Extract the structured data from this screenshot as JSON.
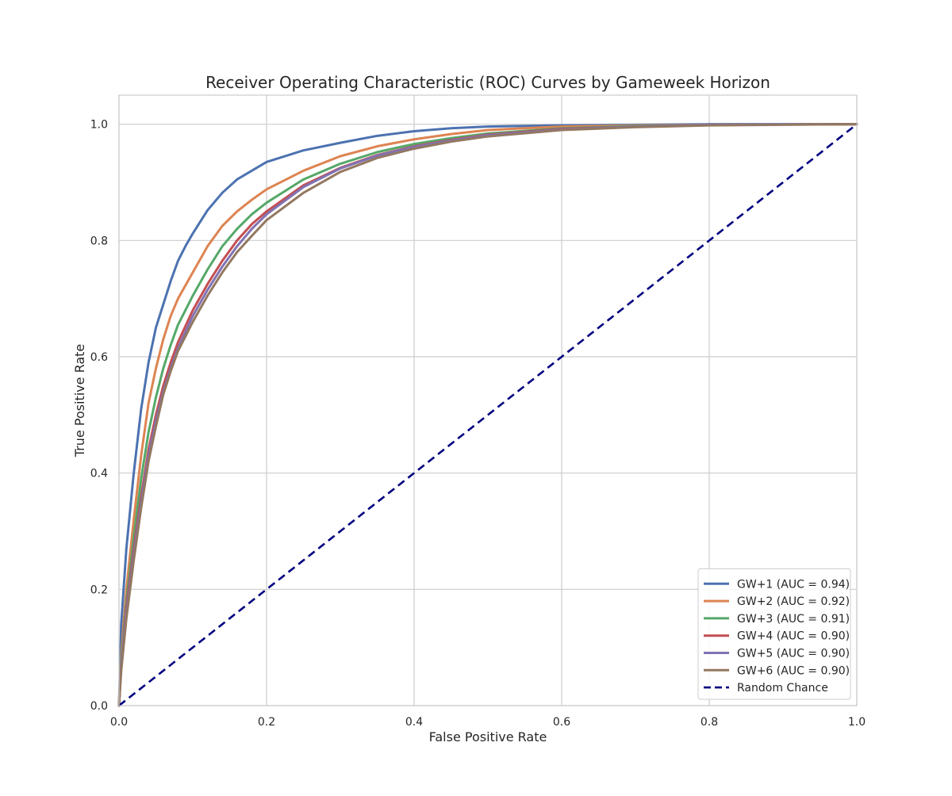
{
  "chart_data": {
    "type": "line",
    "title": "Receiver Operating Characteristic (ROC) Curves by Gameweek Horizon",
    "xlabel": "False Positive Rate",
    "ylabel": "True Positive Rate",
    "xlim": [
      0.0,
      1.0
    ],
    "ylim": [
      0.0,
      1.05
    ],
    "x_ticks": [
      "0.0",
      "0.2",
      "0.4",
      "0.6",
      "0.8",
      "1.0"
    ],
    "y_ticks": [
      "0.0",
      "0.2",
      "0.4",
      "0.6",
      "0.8",
      "1.0"
    ],
    "grid": true,
    "legend_position": "lower-right",
    "series": [
      {
        "name": "GW+1 (AUC = 0.94)",
        "color": "#4c72b0",
        "points": [
          [
            0,
            0
          ],
          [
            0.003,
            0.14
          ],
          [
            0.01,
            0.27
          ],
          [
            0.02,
            0.4
          ],
          [
            0.03,
            0.51
          ],
          [
            0.04,
            0.59
          ],
          [
            0.05,
            0.65
          ],
          [
            0.06,
            0.69
          ],
          [
            0.07,
            0.73
          ],
          [
            0.08,
            0.765
          ],
          [
            0.09,
            0.79
          ],
          [
            0.1,
            0.812
          ],
          [
            0.12,
            0.852
          ],
          [
            0.14,
            0.882
          ],
          [
            0.16,
            0.905
          ],
          [
            0.18,
            0.92
          ],
          [
            0.2,
            0.935
          ],
          [
            0.25,
            0.955
          ],
          [
            0.3,
            0.968
          ],
          [
            0.35,
            0.98
          ],
          [
            0.4,
            0.988
          ],
          [
            0.45,
            0.993
          ],
          [
            0.5,
            0.996
          ],
          [
            0.6,
            0.998
          ],
          [
            0.7,
            0.999
          ],
          [
            0.8,
            1.0
          ],
          [
            1.0,
            1.0
          ]
        ]
      },
      {
        "name": "GW+2 (AUC = 0.92)",
        "color": "#dd8452",
        "points": [
          [
            0,
            0
          ],
          [
            0.003,
            0.09
          ],
          [
            0.01,
            0.2
          ],
          [
            0.02,
            0.32
          ],
          [
            0.03,
            0.43
          ],
          [
            0.04,
            0.52
          ],
          [
            0.05,
            0.58
          ],
          [
            0.06,
            0.63
          ],
          [
            0.07,
            0.67
          ],
          [
            0.08,
            0.7
          ],
          [
            0.1,
            0.745
          ],
          [
            0.12,
            0.79
          ],
          [
            0.14,
            0.825
          ],
          [
            0.16,
            0.85
          ],
          [
            0.18,
            0.87
          ],
          [
            0.2,
            0.888
          ],
          [
            0.25,
            0.92
          ],
          [
            0.3,
            0.945
          ],
          [
            0.35,
            0.962
          ],
          [
            0.4,
            0.974
          ],
          [
            0.45,
            0.983
          ],
          [
            0.5,
            0.99
          ],
          [
            0.6,
            0.996
          ],
          [
            0.7,
            0.998
          ],
          [
            0.8,
            0.999
          ],
          [
            1.0,
            1.0
          ]
        ]
      },
      {
        "name": "GW+3 (AUC = 0.91)",
        "color": "#55a868",
        "points": [
          [
            0,
            0
          ],
          [
            0.003,
            0.08
          ],
          [
            0.01,
            0.18
          ],
          [
            0.02,
            0.29
          ],
          [
            0.03,
            0.39
          ],
          [
            0.04,
            0.47
          ],
          [
            0.05,
            0.53
          ],
          [
            0.06,
            0.58
          ],
          [
            0.07,
            0.62
          ],
          [
            0.08,
            0.655
          ],
          [
            0.1,
            0.705
          ],
          [
            0.12,
            0.75
          ],
          [
            0.14,
            0.79
          ],
          [
            0.16,
            0.82
          ],
          [
            0.18,
            0.845
          ],
          [
            0.2,
            0.865
          ],
          [
            0.25,
            0.905
          ],
          [
            0.3,
            0.932
          ],
          [
            0.35,
            0.952
          ],
          [
            0.4,
            0.966
          ],
          [
            0.45,
            0.976
          ],
          [
            0.5,
            0.984
          ],
          [
            0.6,
            0.993
          ],
          [
            0.7,
            0.997
          ],
          [
            0.8,
            0.999
          ],
          [
            1.0,
            1.0
          ]
        ]
      },
      {
        "name": "GW+4 (AUC = 0.90)",
        "color": "#c44e52",
        "points": [
          [
            0,
            0
          ],
          [
            0.003,
            0.07
          ],
          [
            0.01,
            0.17
          ],
          [
            0.02,
            0.27
          ],
          [
            0.03,
            0.36
          ],
          [
            0.04,
            0.44
          ],
          [
            0.05,
            0.5
          ],
          [
            0.06,
            0.55
          ],
          [
            0.07,
            0.59
          ],
          [
            0.08,
            0.625
          ],
          [
            0.1,
            0.68
          ],
          [
            0.12,
            0.725
          ],
          [
            0.14,
            0.765
          ],
          [
            0.16,
            0.8
          ],
          [
            0.18,
            0.828
          ],
          [
            0.2,
            0.85
          ],
          [
            0.25,
            0.895
          ],
          [
            0.3,
            0.925
          ],
          [
            0.35,
            0.947
          ],
          [
            0.4,
            0.962
          ],
          [
            0.45,
            0.973
          ],
          [
            0.5,
            0.982
          ],
          [
            0.6,
            0.992
          ],
          [
            0.7,
            0.996
          ],
          [
            0.8,
            0.999
          ],
          [
            1.0,
            1.0
          ]
        ]
      },
      {
        "name": "GW+5 (AUC = 0.90)",
        "color": "#8172b3",
        "points": [
          [
            0,
            0
          ],
          [
            0.003,
            0.07
          ],
          [
            0.01,
            0.16
          ],
          [
            0.02,
            0.26
          ],
          [
            0.03,
            0.35
          ],
          [
            0.04,
            0.43
          ],
          [
            0.05,
            0.49
          ],
          [
            0.06,
            0.54
          ],
          [
            0.07,
            0.58
          ],
          [
            0.08,
            0.615
          ],
          [
            0.1,
            0.67
          ],
          [
            0.12,
            0.715
          ],
          [
            0.14,
            0.755
          ],
          [
            0.16,
            0.79
          ],
          [
            0.18,
            0.82
          ],
          [
            0.2,
            0.845
          ],
          [
            0.25,
            0.892
          ],
          [
            0.3,
            0.924
          ],
          [
            0.35,
            0.946
          ],
          [
            0.4,
            0.961
          ],
          [
            0.45,
            0.972
          ],
          [
            0.5,
            0.981
          ],
          [
            0.6,
            0.991
          ],
          [
            0.7,
            0.996
          ],
          [
            0.8,
            0.999
          ],
          [
            1.0,
            1.0
          ]
        ]
      },
      {
        "name": "GW+6 (AUC = 0.90)",
        "color": "#937860",
        "points": [
          [
            0,
            0
          ],
          [
            0.003,
            0.06
          ],
          [
            0.01,
            0.15
          ],
          [
            0.02,
            0.25
          ],
          [
            0.03,
            0.34
          ],
          [
            0.04,
            0.42
          ],
          [
            0.05,
            0.48
          ],
          [
            0.06,
            0.535
          ],
          [
            0.07,
            0.575
          ],
          [
            0.08,
            0.61
          ],
          [
            0.1,
            0.66
          ],
          [
            0.12,
            0.705
          ],
          [
            0.14,
            0.745
          ],
          [
            0.16,
            0.78
          ],
          [
            0.18,
            0.808
          ],
          [
            0.2,
            0.835
          ],
          [
            0.25,
            0.882
          ],
          [
            0.3,
            0.918
          ],
          [
            0.35,
            0.942
          ],
          [
            0.4,
            0.958
          ],
          [
            0.45,
            0.97
          ],
          [
            0.5,
            0.979
          ],
          [
            0.6,
            0.99
          ],
          [
            0.7,
            0.995
          ],
          [
            0.8,
            0.998
          ],
          [
            1.0,
            1.0
          ]
        ]
      }
    ],
    "reference_line": {
      "name": "Random Chance",
      "color": "#000080",
      "style": "dashed",
      "points": [
        [
          0,
          0
        ],
        [
          1,
          1
        ]
      ]
    }
  }
}
